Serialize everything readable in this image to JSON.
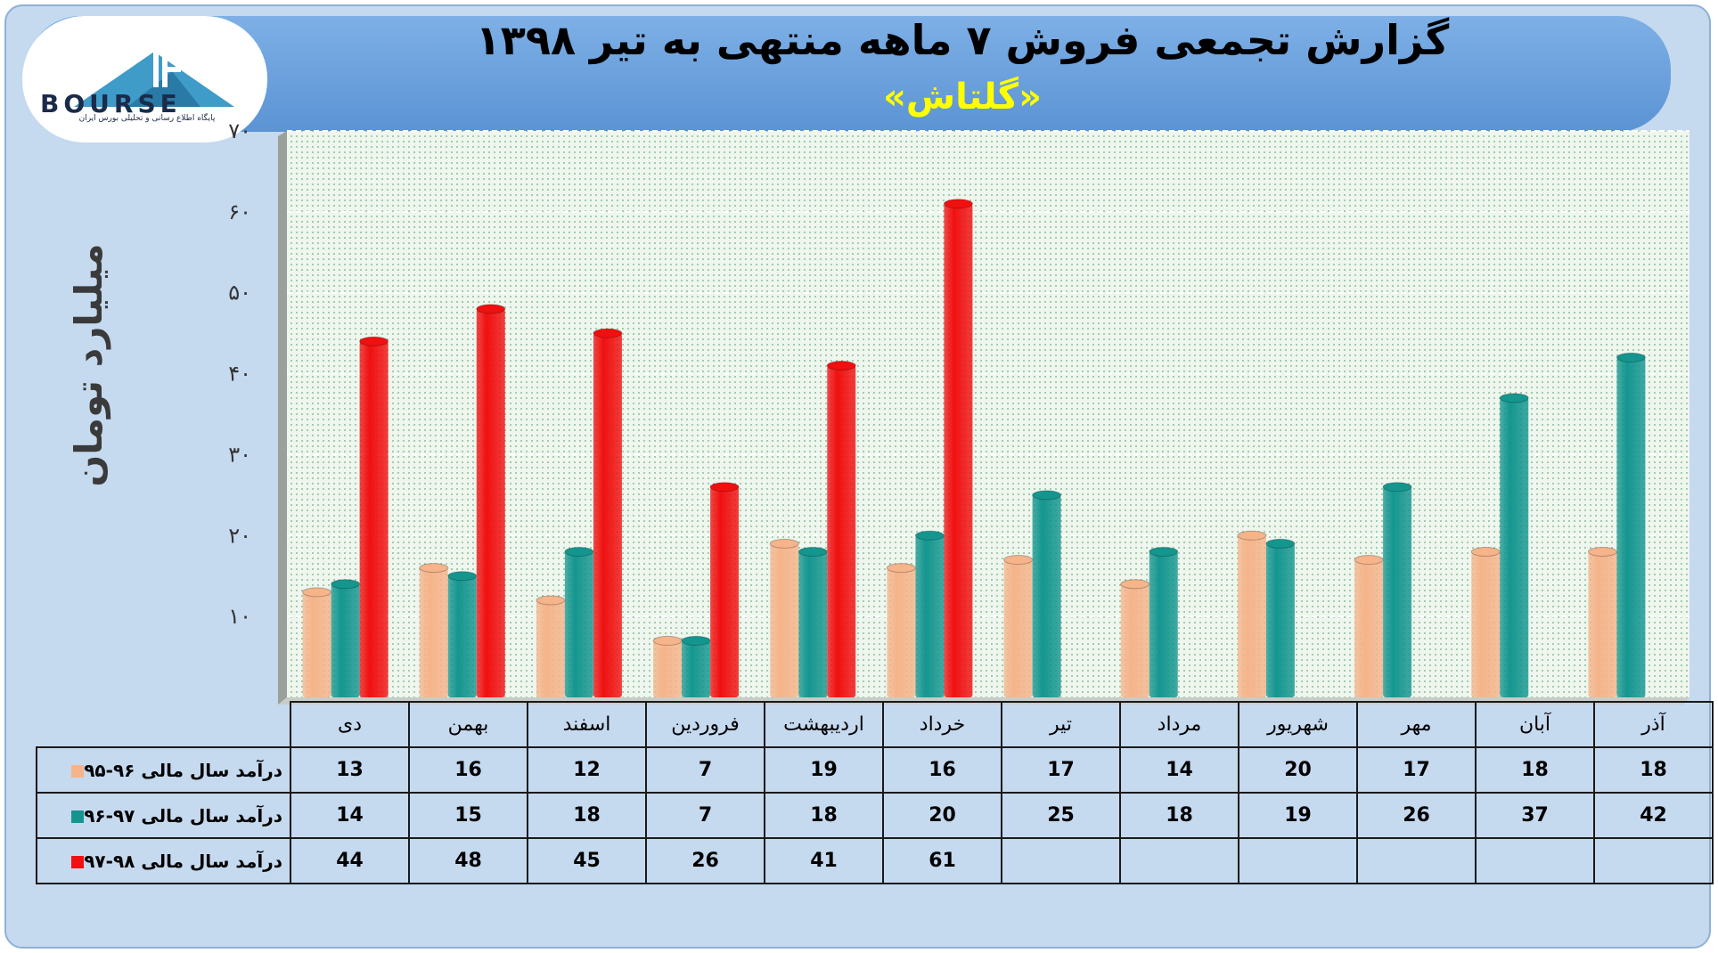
{
  "header": {
    "title": "گزارش تجمعی فروش ۷ ماهه منتهی به تیر ۱۳۹۸",
    "subtitle": "«گلتاش»"
  },
  "logo": {
    "text": "BOURSE",
    "subtitle": "پایگاه اطلاع رسانی و تحلیلی بورس ایران"
  },
  "colors": {
    "series1": "#f5b48a",
    "series2": "#14968f",
    "series3": "#f01010",
    "plot_bg": "#eef6ee",
    "frame": "#c5d9ef"
  },
  "chart_data": {
    "type": "bar",
    "ylabel": "میلیارد تومان",
    "ylim": [
      0,
      70
    ],
    "yticks": [
      "۱۰",
      "۲۰",
      "۳۰",
      "۴۰",
      "۵۰",
      "۶۰",
      "۷۰"
    ],
    "grid": true,
    "legend": "table",
    "categories": [
      "دی",
      "بهمن",
      "اسفند",
      "فروردین",
      "اردیبهشت",
      "خرداد",
      "تیر",
      "مرداد",
      "شهریور",
      "مهر",
      "آبان",
      "آذر"
    ],
    "series": [
      {
        "name": "درآمد سال مالی ۹۶-۹۵",
        "values": [
          13,
          16,
          12,
          7,
          19,
          16,
          17,
          14,
          20,
          17,
          18,
          18
        ]
      },
      {
        "name": "درآمد سال مالی ۹۷-۹۶",
        "values": [
          14,
          15,
          18,
          7,
          18,
          20,
          25,
          18,
          19,
          26,
          37,
          42
        ]
      },
      {
        "name": "درآمد سال مالی ۹۸-۹۷",
        "values": [
          44,
          48,
          45,
          26,
          41,
          61,
          null,
          null,
          null,
          null,
          null,
          null
        ]
      }
    ]
  }
}
